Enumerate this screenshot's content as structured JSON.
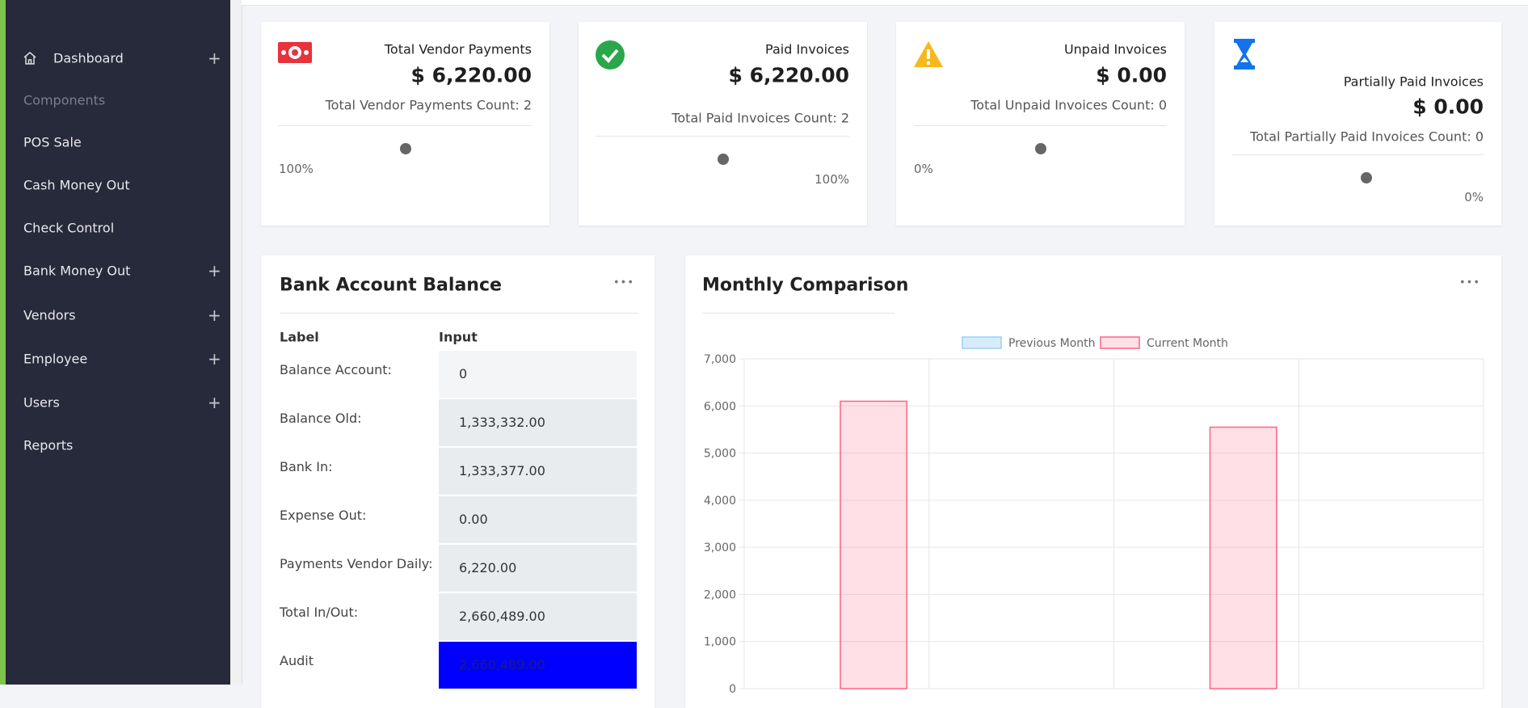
{
  "sidebar": {
    "items": [
      {
        "label": "Dashboard",
        "expand": "+"
      },
      {
        "label": "Components"
      },
      {
        "label": "POS Sale"
      },
      {
        "label": "Cash Money Out"
      },
      {
        "label": "Check Control"
      },
      {
        "label": "Bank Money Out",
        "expand": "+"
      },
      {
        "label": "Vendors",
        "expand": "+"
      },
      {
        "label": "Employee",
        "expand": "+"
      },
      {
        "label": "Users",
        "expand": "+"
      },
      {
        "label": "Reports"
      }
    ]
  },
  "cards": [
    {
      "title": "Total Vendor Payments",
      "amount": "$ 6,220.00",
      "count": "Total Vendor Payments Count: 2",
      "percent": "100%"
    },
    {
      "title": "Paid Invoices",
      "amount": "$ 6,220.00",
      "count": "Total Paid Invoices Count: 2",
      "percent": "100%"
    },
    {
      "title": "Unpaid Invoices",
      "amount": "$ 0.00",
      "count": "Total Unpaid Invoices Count: 0",
      "percent": "0%"
    },
    {
      "title": "Partially Paid Invoices",
      "amount": "$ 0.00",
      "count": "Total Partially Paid Invoices Count: 0",
      "percent": "0%"
    }
  ],
  "bank": {
    "title": "Bank Account Balance",
    "menu": "•••",
    "headers": [
      "Label",
      "Input"
    ],
    "rows": [
      [
        "Balance Account:",
        "0"
      ],
      [
        "Balance Old:",
        "1,333,332.00"
      ],
      [
        "Bank In:",
        "1,333,377.00"
      ],
      [
        "Expense Out:",
        "0.00"
      ],
      [
        "Payments Vendor Daily:",
        "6,220.00"
      ],
      [
        "Total In/Out:",
        "2,660,489.00"
      ],
      [
        "Audit",
        "2,660,489.00"
      ]
    ]
  },
  "chart_data": {
    "type": "bar",
    "title": "Monthly Comparison",
    "menu": "•••",
    "categories": [
      null,
      null,
      null,
      null
    ],
    "series": [
      {
        "name": "Previous Month",
        "color": "#9ad0f5",
        "values": [
          0,
          0,
          0,
          0
        ]
      },
      {
        "name": "Current Month",
        "color": "#ff6384",
        "values": [
          6100,
          0,
          5550,
          0
        ]
      }
    ],
    "ylim": [
      0,
      7000
    ],
    "yticks": [
      0,
      {
        "value": 1000,
        "label": "1,000"
      },
      {
        "value": 2000,
        "label": "2,000"
      },
      {
        "value": 3000,
        "label": "3,000"
      },
      {
        "value": 4000,
        "label": "4,000"
      },
      {
        "value": 5000,
        "label": "5,000"
      },
      {
        "value": 6000,
        "label": "6,000"
      },
      {
        "value": 7000,
        "label": "7,000"
      }
    ],
    "grid": true
  }
}
